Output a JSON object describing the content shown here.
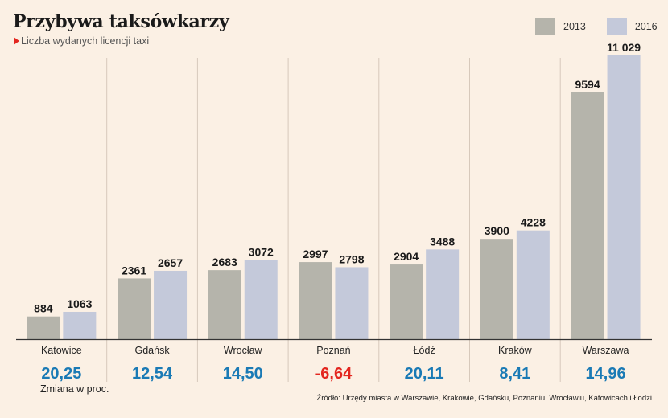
{
  "title": "Przybywa taksówkarzy",
  "subtitle": "Liczba wydanych licencji taxi",
  "footnote": "Zmiana w proc.",
  "source": "Źródło: Urzędy miasta w Warszawie, Krakowie, Gdańsku, Poznaniu, Wrocławiu, Katowicach i Łodzi",
  "colors": {
    "background": "#fbf0e4",
    "series_2013": "#b5b4ab",
    "series_2016": "#c4c9da",
    "change_positive": "#1a7ab5",
    "change_negative": "#e3261f",
    "accent": "#e3261f"
  },
  "chart_data": {
    "type": "bar",
    "categories": [
      "Katowice",
      "Gdańsk",
      "Wrocław",
      "Poznań",
      "Łódź",
      "Kraków",
      "Warszawa"
    ],
    "series": [
      {
        "name": "2013",
        "values": [
          884,
          2361,
          2683,
          2997,
          2904,
          3900,
          9594
        ],
        "labels": [
          "884",
          "2361",
          "2683",
          "2997",
          "2904",
          "3900",
          "9594"
        ]
      },
      {
        "name": "2016",
        "values": [
          1063,
          2657,
          3072,
          2798,
          3488,
          4228,
          11029
        ],
        "labels": [
          "1063",
          "2657",
          "3072",
          "2798",
          "3488",
          "4228",
          "11 029"
        ]
      }
    ],
    "change_percent": [
      "20,25",
      "12,54",
      "14,50",
      "-6,64",
      "20,11",
      "8,41",
      "14,96"
    ],
    "change_values": [
      20.25,
      12.54,
      14.5,
      -6.64,
      20.11,
      8.41,
      14.96
    ],
    "ylim": [
      0,
      11029
    ],
    "grid": false,
    "legend_position": "top-right"
  }
}
